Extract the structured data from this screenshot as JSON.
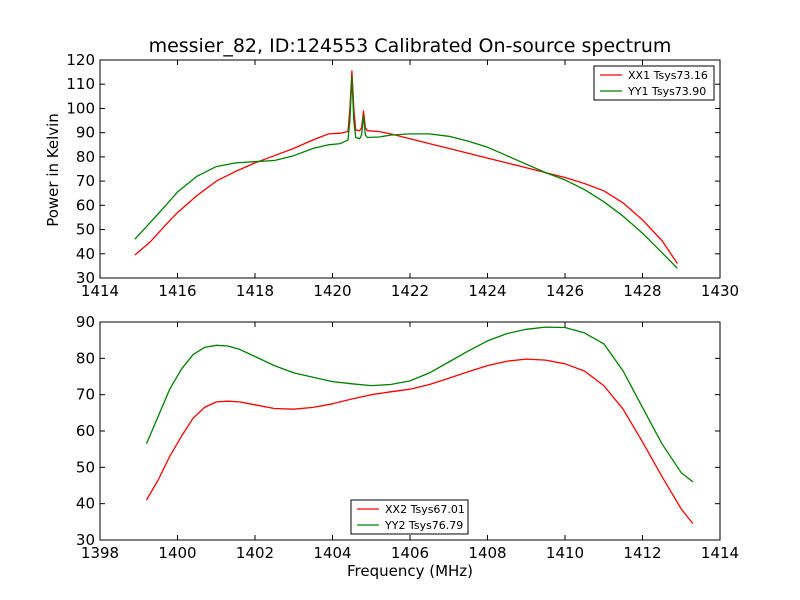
{
  "chart_data": [
    {
      "type": "line",
      "title": "messier_82, ID:124553 Calibrated On-source spectrum",
      "xlabel": "",
      "ylabel": "Power in Kelvin",
      "xlim": [
        1414,
        1430
      ],
      "ylim": [
        30,
        120
      ],
      "xticks": [
        1414,
        1416,
        1418,
        1420,
        1422,
        1424,
        1426,
        1428,
        1430
      ],
      "yticks": [
        30,
        40,
        50,
        60,
        70,
        80,
        90,
        100,
        110,
        120
      ],
      "legend_position": "top-right",
      "series": [
        {
          "name": "XX1 Tsys73.16",
          "color": "#ff0000",
          "x": [
            1414.9,
            1415.3,
            1415.7,
            1416.0,
            1416.5,
            1417.0,
            1417.5,
            1418.0,
            1418.5,
            1419.0,
            1419.5,
            1419.9,
            1420.2,
            1420.4,
            1420.45,
            1420.5,
            1420.55,
            1420.6,
            1420.7,
            1420.75,
            1420.8,
            1420.85,
            1420.9,
            1421.2,
            1421.5,
            1422.0,
            1422.5,
            1423.0,
            1423.5,
            1424.0,
            1424.5,
            1425.0,
            1425.5,
            1426.0,
            1426.5,
            1427.0,
            1427.5,
            1428.0,
            1428.5,
            1428.9
          ],
          "values": [
            39.5,
            45,
            52,
            57,
            64,
            70,
            74,
            77.5,
            80.5,
            83.5,
            87,
            89.5,
            89.8,
            90.5,
            100,
            115.5,
            100,
            91,
            90.8,
            92,
            99,
            92,
            90.8,
            90.5,
            89.5,
            87.5,
            85.5,
            83.5,
            81.5,
            79.5,
            77.5,
            75.5,
            73.5,
            71.5,
            69,
            66,
            61,
            54,
            45.5,
            36
          ]
        },
        {
          "name": "YY1 Tsys73.90",
          "color": "#008000",
          "x": [
            1414.9,
            1415.3,
            1415.7,
            1416.0,
            1416.5,
            1417.0,
            1417.5,
            1418.0,
            1418.5,
            1419.0,
            1419.5,
            1419.9,
            1420.2,
            1420.4,
            1420.45,
            1420.5,
            1420.55,
            1420.6,
            1420.7,
            1420.75,
            1420.8,
            1420.85,
            1420.9,
            1421.2,
            1421.5,
            1422.0,
            1422.5,
            1423.0,
            1423.5,
            1424.0,
            1424.5,
            1425.0,
            1425.5,
            1426.0,
            1426.5,
            1427.0,
            1427.5,
            1428.0,
            1428.5,
            1428.9
          ],
          "values": [
            46,
            53,
            60,
            65.5,
            72,
            76,
            77.5,
            78,
            78.5,
            80.5,
            83.5,
            85,
            85.5,
            87,
            95,
            113,
            95,
            88,
            87.5,
            89,
            97,
            89,
            88,
            88.2,
            89,
            89.5,
            89.5,
            88.5,
            86.5,
            84,
            80.5,
            77,
            73.5,
            70.5,
            66.5,
            61.5,
            55.5,
            48.5,
            40.5,
            34
          ]
        }
      ]
    },
    {
      "type": "line",
      "title": "",
      "xlabel": "Frequency (MHz)",
      "ylabel": "",
      "xlim": [
        1398,
        1414
      ],
      "ylim": [
        30,
        90
      ],
      "xticks": [
        1398,
        1400,
        1402,
        1404,
        1406,
        1408,
        1410,
        1412,
        1414
      ],
      "yticks": [
        30,
        40,
        50,
        60,
        70,
        80,
        90
      ],
      "legend_position": "lower-center",
      "series": [
        {
          "name": "XX2 Tsys67.01",
          "color": "#ff0000",
          "x": [
            1399.2,
            1399.5,
            1399.8,
            1400.1,
            1400.4,
            1400.7,
            1401.0,
            1401.3,
            1401.6,
            1402.0,
            1402.5,
            1403.0,
            1403.5,
            1404.0,
            1404.5,
            1405.0,
            1405.5,
            1406.0,
            1406.5,
            1407.0,
            1407.5,
            1408.0,
            1408.5,
            1409.0,
            1409.5,
            1410.0,
            1410.5,
            1411.0,
            1411.5,
            1412.0,
            1412.5,
            1413.0,
            1413.3
          ],
          "values": [
            41,
            46.5,
            53,
            58.5,
            63.5,
            66.5,
            68,
            68.2,
            68,
            67.2,
            66.2,
            66,
            66.5,
            67.5,
            68.8,
            70,
            70.8,
            71.5,
            72.8,
            74.5,
            76.3,
            78,
            79.2,
            79.8,
            79.5,
            78.5,
            76.5,
            72.5,
            66,
            57,
            47.5,
            38.5,
            34.5
          ]
        },
        {
          "name": "YY2 Tsys76.79",
          "color": "#008000",
          "x": [
            1399.2,
            1399.5,
            1399.8,
            1400.1,
            1400.4,
            1400.7,
            1401.0,
            1401.3,
            1401.6,
            1402.0,
            1402.5,
            1403.0,
            1403.5,
            1404.0,
            1404.5,
            1405.0,
            1405.5,
            1406.0,
            1406.5,
            1407.0,
            1407.5,
            1408.0,
            1408.5,
            1409.0,
            1409.5,
            1410.0,
            1410.5,
            1411.0,
            1411.5,
            1412.0,
            1412.5,
            1413.0,
            1413.3
          ],
          "values": [
            56.5,
            64,
            71.5,
            77,
            81,
            83,
            83.6,
            83.4,
            82.5,
            80.5,
            78,
            76,
            74.8,
            73.6,
            73,
            72.5,
            72.8,
            73.8,
            76,
            79,
            82,
            84.8,
            86.8,
            88,
            88.6,
            88.5,
            87,
            84,
            76.5,
            66.5,
            56.5,
            48.5,
            46
          ]
        }
      ]
    }
  ]
}
